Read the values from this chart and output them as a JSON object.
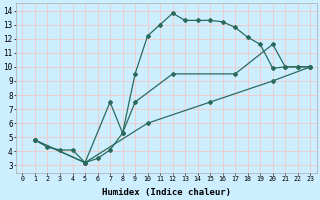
{
  "xlabel": "Humidex (Indice chaleur)",
  "bg_color": "#cceeff",
  "line_color": "#2a6b5e",
  "grid_color": "#f0c8c8",
  "xlim": [
    -0.5,
    23.5
  ],
  "ylim": [
    2.5,
    14.5
  ],
  "xticks": [
    0,
    1,
    2,
    3,
    4,
    5,
    6,
    7,
    8,
    9,
    10,
    11,
    12,
    13,
    14,
    15,
    16,
    17,
    18,
    19,
    20,
    21,
    22,
    23
  ],
  "yticks": [
    3,
    4,
    5,
    6,
    7,
    8,
    9,
    10,
    11,
    12,
    13,
    14
  ],
  "line1_x": [
    1,
    2,
    3,
    4,
    5,
    6,
    7,
    8,
    9,
    10,
    11,
    12,
    13,
    14,
    15,
    16,
    17,
    18,
    19,
    20,
    21,
    22,
    23
  ],
  "line1_y": [
    4.8,
    4.3,
    4.1,
    4.1,
    3.2,
    3.5,
    4.1,
    5.3,
    9.5,
    12.2,
    13.0,
    13.8,
    13.3,
    13.3,
    13.3,
    13.2,
    12.8,
    12.1,
    11.6,
    9.9,
    10.0,
    10.0,
    10.0
  ],
  "line2_x": [
    1,
    5,
    7,
    8,
    9,
    12,
    17,
    20,
    21,
    22,
    23
  ],
  "line2_y": [
    4.8,
    3.2,
    7.5,
    5.3,
    7.5,
    9.5,
    9.5,
    11.6,
    10.0,
    10.0,
    10.0
  ],
  "line3_x": [
    1,
    5,
    10,
    15,
    20,
    23
  ],
  "line3_y": [
    4.8,
    3.2,
    6.0,
    7.5,
    9.0,
    10.0
  ]
}
